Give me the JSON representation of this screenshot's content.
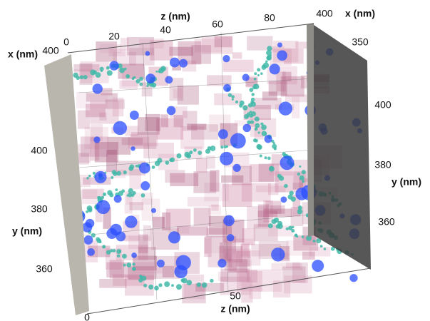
{
  "top_z_axis": {
    "label": "z (nm)",
    "ticks": [
      0,
      20,
      40,
      60,
      80
    ]
  },
  "top_left_x_axis": {
    "label": "x (nm)",
    "ticks": [
      400
    ]
  },
  "top_right_x_axis": {
    "label": "x (nm)",
    "ticks": [
      400,
      350
    ]
  },
  "right_y_axis": {
    "label": "y (nm)",
    "ticks": [
      400,
      380,
      360
    ]
  },
  "left_y_axis": {
    "label": "y (nm)",
    "ticks": [
      400,
      380,
      360
    ]
  },
  "bottom_z_axis": {
    "label": "z (nm)",
    "ticks": [
      50,
      0
    ]
  }
}
